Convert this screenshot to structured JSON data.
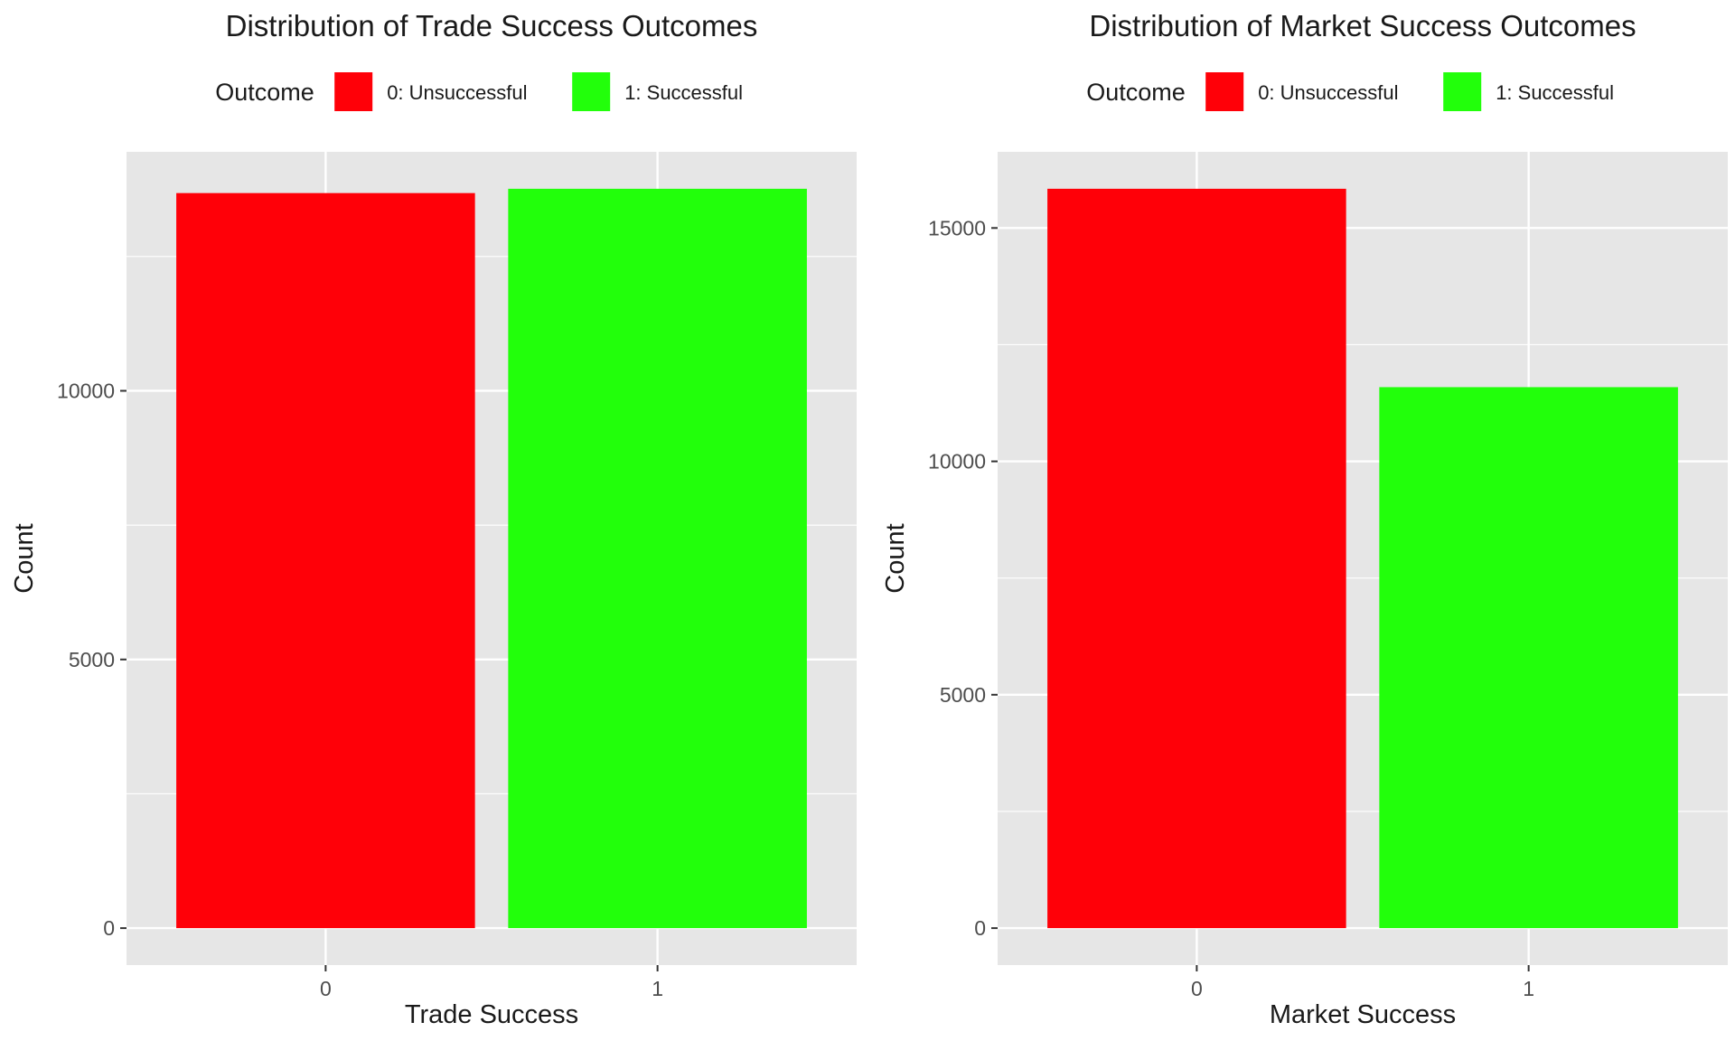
{
  "chart_data": [
    {
      "type": "bar",
      "title": "Distribution of Trade Success Outcomes",
      "xlabel": "Trade Success",
      "ylabel": "Count",
      "legend_title": "Outcome",
      "legend_position": "top",
      "categories": [
        "0",
        "1"
      ],
      "values": [
        13680,
        13760
      ],
      "colors": [
        "#FF0008",
        "#22FF0B"
      ],
      "legend_entries": [
        "0: Unsuccessful",
        "1: Successful"
      ],
      "y_ticks": [
        0,
        5000,
        10000
      ],
      "y_tick_labels": [
        "0",
        "5000",
        "10000"
      ],
      "ylim": [
        -688,
        14448
      ],
      "grid": true
    },
    {
      "type": "bar",
      "title": "Distribution of Market Success Outcomes",
      "xlabel": "Market Success",
      "ylabel": "Count",
      "legend_title": "Outcome",
      "legend_position": "top",
      "categories": [
        "0",
        "1"
      ],
      "values": [
        15840,
        11590
      ],
      "colors": [
        "#FF0008",
        "#22FF0B"
      ],
      "legend_entries": [
        "0: Unsuccessful",
        "1: Successful"
      ],
      "y_ticks": [
        0,
        5000,
        10000,
        15000
      ],
      "y_tick_labels": [
        "0",
        "5000",
        "10000",
        "15000"
      ],
      "ylim": [
        -792,
        16632
      ],
      "grid": true
    }
  ],
  "colors": {
    "panel_background": "#E6E6E6",
    "grid": "#FFFFFF",
    "text": "#1A1A1A",
    "tick_text": "#4D4D4D",
    "tick_mark": "#333333"
  }
}
